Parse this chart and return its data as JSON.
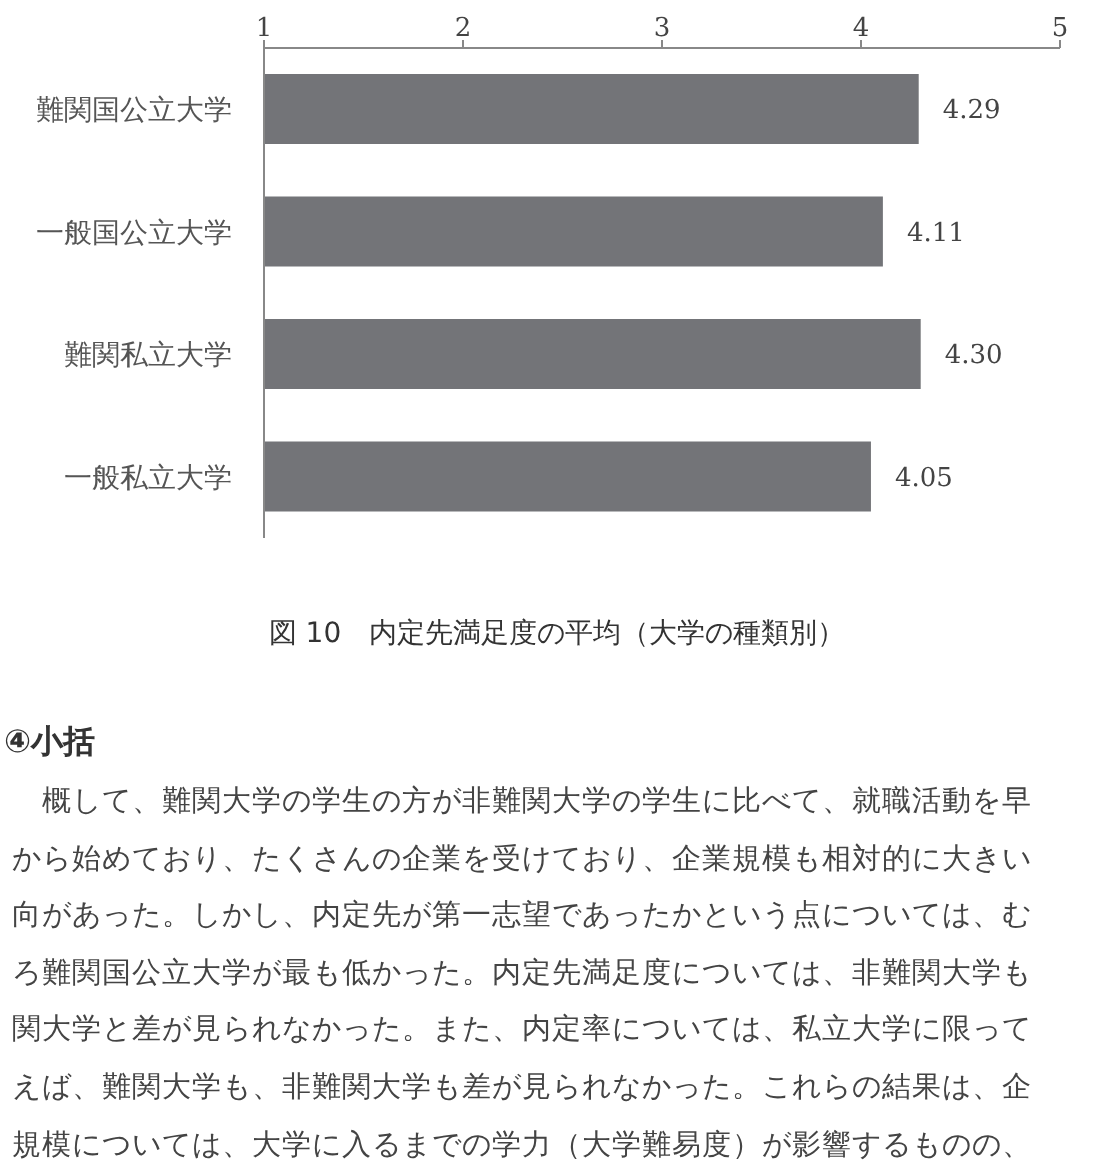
{
  "chart_data": {
    "type": "bar",
    "orientation": "horizontal",
    "title": "図 10　内定先満足度の平均（大学の種類別）",
    "categories": [
      "難関国公立大学",
      "一般国公立大学",
      "難関私立大学",
      "一般私立大学"
    ],
    "values": [
      4.29,
      4.11,
      4.3,
      4.05
    ],
    "value_labels": [
      "4.29",
      "4.11",
      "4.30",
      "4.05"
    ],
    "color": "#737478",
    "xlim": [
      1,
      5
    ],
    "xticks": [
      1,
      2,
      3,
      4,
      5
    ],
    "annotations": [
      "④小括",
      "　概して、難関大学の学生の方が非難関大学の学生に比べて、就職活動を早",
      "から始めており、たくさんの企業を受けており、企業規模も相対的に大きい",
      "向があった。しかし、内定先が第一志望であったかという点については、む",
      "ろ難関国公立大学が最も低かった。内定先満足度については、非難関大学も",
      "関大学と差が見られなかった。また、内定率については、私立大学に限って",
      "えば、難関大学も、非難関大学も差が見られなかった。これらの結果は、企",
      "規模については、大学に入るまでの学力（大学難易度）が影響するものの、"
    ]
  }
}
